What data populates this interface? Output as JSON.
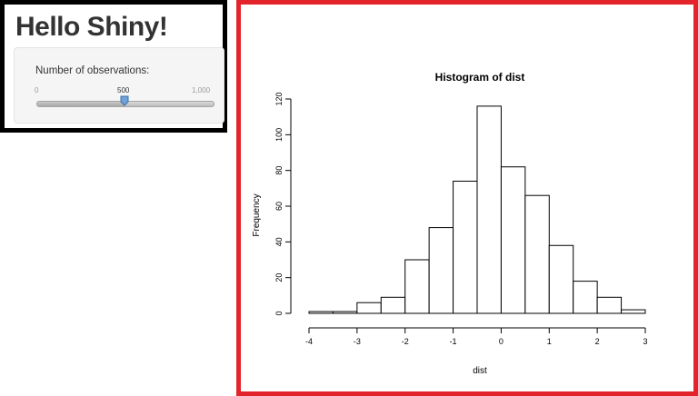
{
  "app": {
    "title": "Hello Shiny!"
  },
  "slider": {
    "label": "Number of observations:",
    "min": 0,
    "max": 1000,
    "value": 500,
    "min_label": "0",
    "value_label": "500",
    "max_label": "1,000"
  },
  "chart_data": {
    "type": "bar",
    "title": "Histogram of dist",
    "xlabel": "dist",
    "ylabel": "Frequency",
    "bin_edges": [
      -4,
      -3.5,
      -3,
      -2.5,
      -2,
      -1.5,
      -1,
      -0.5,
      0,
      0.5,
      1,
      1.5,
      2,
      2.5,
      3
    ],
    "values": [
      1,
      1,
      6,
      9,
      30,
      48,
      74,
      116,
      82,
      66,
      38,
      18,
      9,
      2
    ],
    "xlim": [
      -4,
      3
    ],
    "ylim": [
      0,
      120
    ],
    "xticks": [
      "-4",
      "-3",
      "-2",
      "-1",
      "0",
      "1",
      "2",
      "3"
    ],
    "yticks": [
      "0",
      "20",
      "40",
      "60",
      "80",
      "100",
      "120"
    ],
    "grid": false,
    "bar_fill": "#ffffff",
    "bar_stroke": "#000000"
  },
  "colors": {
    "plot_border": "#e3252b",
    "sidebar_border": "#000000",
    "slider_handle": "#6fa3d9"
  }
}
